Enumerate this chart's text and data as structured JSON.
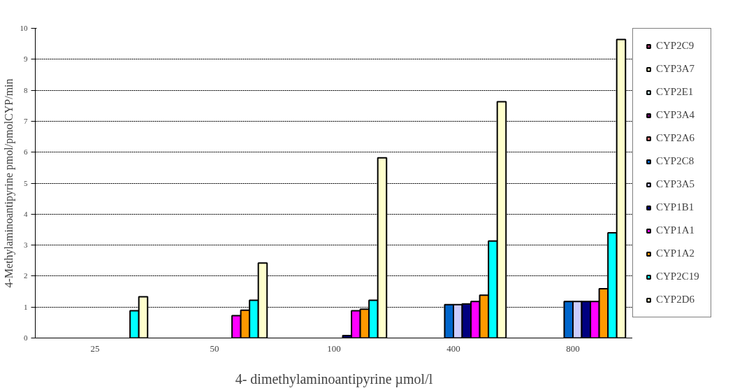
{
  "chart_data": {
    "type": "bar",
    "xlabel": "4- dimethylaminoantipyrine µmol/l",
    "ylabel": "4-Methylaminoantipyrine pmol/pmolCYP/min",
    "categories": [
      "25",
      "50",
      "100",
      "400",
      "800"
    ],
    "series": [
      {
        "name": "CYP2C9",
        "color": "#993366",
        "values": [
          null,
          null,
          null,
          null,
          null
        ]
      },
      {
        "name": "CYP3A7",
        "color": "#ffffcc",
        "values": [
          null,
          null,
          null,
          null,
          null
        ]
      },
      {
        "name": "CYP2E1",
        "color": "#ccffff",
        "values": [
          null,
          null,
          null,
          null,
          null
        ]
      },
      {
        "name": "CYP3A4",
        "color": "#660066",
        "values": [
          null,
          null,
          null,
          null,
          null
        ]
      },
      {
        "name": "CYP2A6",
        "color": "#ff8080",
        "values": [
          null,
          null,
          null,
          null,
          null
        ]
      },
      {
        "name": "CYP2C8",
        "color": "#0066cc",
        "values": [
          null,
          null,
          null,
          1.08,
          1.18
        ]
      },
      {
        "name": "CYP3A5",
        "color": "#ccccff",
        "values": [
          null,
          null,
          null,
          1.08,
          1.18
        ]
      },
      {
        "name": "CYP1B1",
        "color": "#000080",
        "values": [
          null,
          null,
          0.08,
          1.1,
          1.18
        ]
      },
      {
        "name": "CYP1A1",
        "color": "#ff00ff",
        "values": [
          null,
          0.72,
          0.88,
          1.18,
          1.18
        ]
      },
      {
        "name": "CYP1A2",
        "color": "#ff9900",
        "values": [
          null,
          0.9,
          0.93,
          1.38,
          1.59
        ]
      },
      {
        "name": "CYP2C19",
        "color": "#00ffff",
        "values": [
          0.88,
          1.22,
          1.22,
          3.13,
          3.4
        ]
      },
      {
        "name": "CYP2D6",
        "color": "#ffffcc",
        "values": [
          1.33,
          2.42,
          5.82,
          7.63,
          9.64
        ]
      }
    ],
    "ylim": [
      0,
      10
    ],
    "yticks": [
      0,
      1,
      2,
      3,
      4,
      5,
      6,
      7,
      8,
      9,
      10
    ],
    "grid": "y",
    "legend": "right"
  }
}
